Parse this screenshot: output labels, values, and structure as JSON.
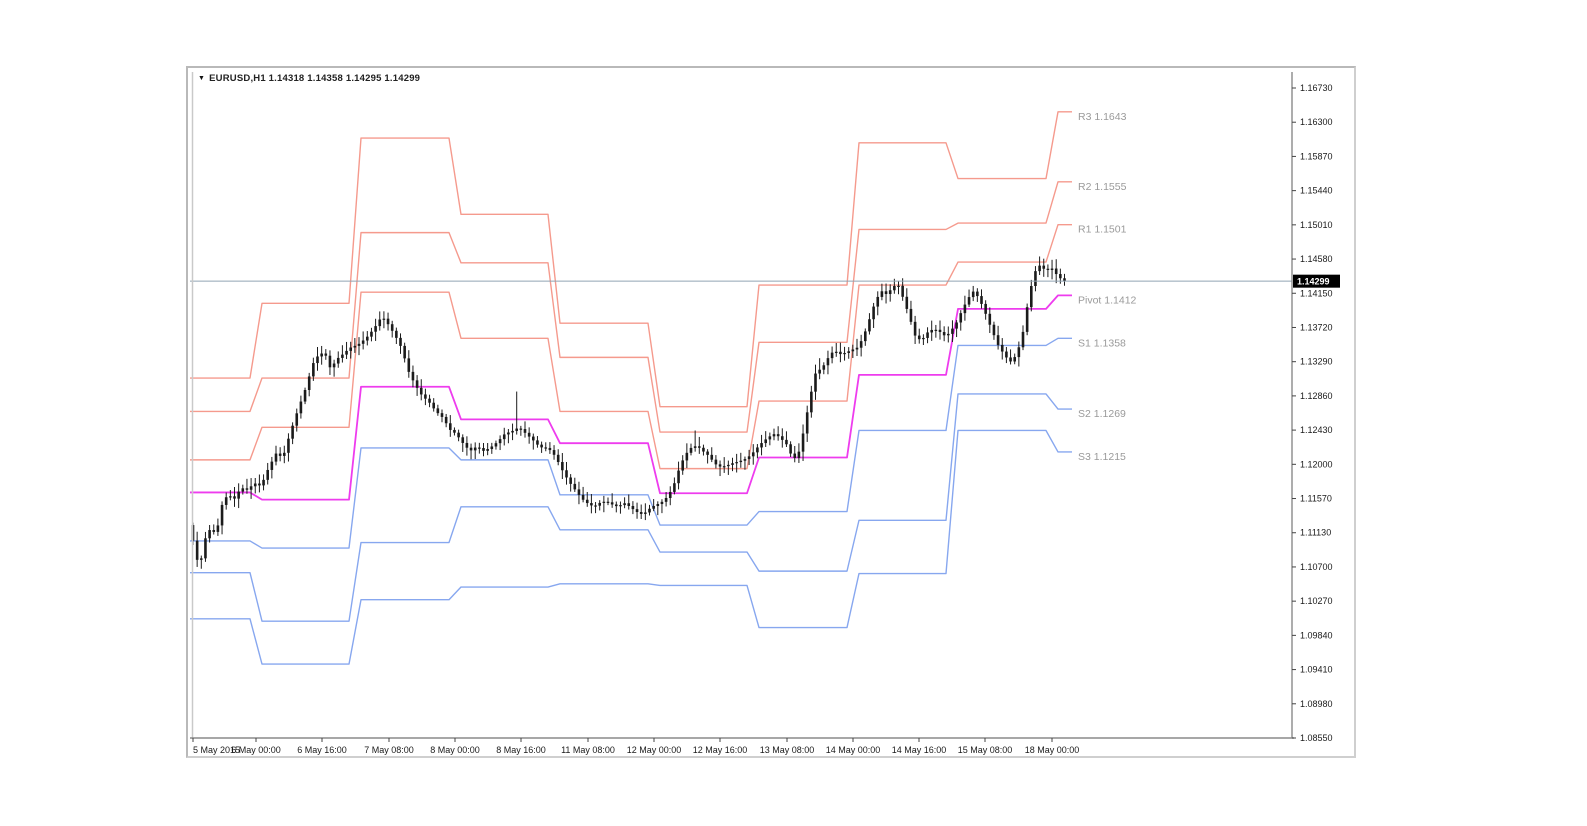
{
  "window": {
    "title": "EURUSD,H1  1.14318 1.14358 1.14295 1.14299",
    "symbol": "EURUSD",
    "timeframe": "H1"
  },
  "colors": {
    "resistance_line": "#f59a8d",
    "pivot_line": "#ee3cee",
    "support_line": "#87a7ef",
    "bid_line": "#90a4b3",
    "candle": "#1b1b1b",
    "axis_text": "#1a1a1a",
    "pivot_label_text": "#9a9a9a",
    "frame": "#8a8a8a",
    "price_box_bg": "#000000",
    "price_box_text": "#ffffff"
  },
  "chart_data": {
    "type": "candlestick-with-step-lines",
    "title": "EURUSD,H1",
    "quote": {
      "open": "1.14318",
      "high": "1.14358",
      "low": "1.14295",
      "close": "1.14299"
    },
    "bid_price": 1.14299,
    "bid_price_label": "1.14299",
    "y_axis": {
      "top_price": 1.1673,
      "bottom_price": 1.0855,
      "labels": [
        "1.16730",
        "1.16300",
        "1.15870",
        "1.15440",
        "1.15010",
        "1.14580",
        "1.14150",
        "1.13720",
        "1.13290",
        "1.12860",
        "1.12430",
        "1.12000",
        "1.11570",
        "1.11130",
        "1.10700",
        "1.10270",
        "1.09840",
        "1.09410",
        "1.08980",
        "1.08550"
      ]
    },
    "x_axis": {
      "labels": [
        "5 May 2015",
        "6 May 00:00",
        "6 May 16:00",
        "7 May 08:00",
        "8 May 00:00",
        "8 May 16:00",
        "11 May 08:00",
        "12 May 00:00",
        "12 May 16:00",
        "13 May 08:00",
        "14 May 00:00",
        "14 May 16:00",
        "15 May 08:00",
        "18 May 00:00"
      ]
    },
    "pivot_labels": [
      {
        "text": "R3 1.1643",
        "price": 1.1643,
        "kind": "resistance"
      },
      {
        "text": "R2 1.1555",
        "price": 1.1555,
        "kind": "resistance"
      },
      {
        "text": "R1 1.1501",
        "price": 1.1501,
        "kind": "resistance"
      },
      {
        "text": "Pivot 1.1412",
        "price": 1.1412,
        "kind": "pivot"
      },
      {
        "text": "S1 1.1358",
        "price": 1.1358,
        "kind": "support"
      },
      {
        "text": "S2 1.1269",
        "price": 1.1269,
        "kind": "support"
      },
      {
        "text": "S3 1.1215",
        "price": 1.1215,
        "kind": "support"
      }
    ],
    "pivot_days": [
      {
        "date": "5 May",
        "r3": 1.1308,
        "r2": 1.1266,
        "r1": 1.1205,
        "p": 1.1164,
        "s1": 1.1103,
        "s2": 1.1063,
        "s3": 1.1005
      },
      {
        "date": "6 May",
        "r3": 1.1402,
        "r2": 1.1308,
        "r1": 1.1246,
        "p": 1.1155,
        "s1": 1.1094,
        "s2": 1.1002,
        "s3": 1.0948
      },
      {
        "date": "7 May",
        "r3": 1.161,
        "r2": 1.1491,
        "r1": 1.1416,
        "p": 1.1297,
        "s1": 1.122,
        "s2": 1.1101,
        "s3": 1.1029
      },
      {
        "date": "8 May",
        "r3": 1.1514,
        "r2": 1.1453,
        "r1": 1.1358,
        "p": 1.1256,
        "s1": 1.1205,
        "s2": 1.1146,
        "s3": 1.1045
      },
      {
        "date": "11 May",
        "r3": 1.1377,
        "r2": 1.1334,
        "r1": 1.1266,
        "p": 1.1226,
        "s1": 1.1161,
        "s2": 1.1117,
        "s3": 1.1049
      },
      {
        "date": "12 May",
        "r3": 1.1272,
        "r2": 1.124,
        "r1": 1.1194,
        "p": 1.1163,
        "s1": 1.1123,
        "s2": 1.1089,
        "s3": 1.1047
      },
      {
        "date": "13 May",
        "r3": 1.1425,
        "r2": 1.1353,
        "r1": 1.1279,
        "p": 1.1208,
        "s1": 1.114,
        "s2": 1.1065,
        "s3": 1.0994
      },
      {
        "date": "14 May",
        "r3": 1.1604,
        "r2": 1.1495,
        "r1": 1.1425,
        "p": 1.1312,
        "s1": 1.1242,
        "s2": 1.1129,
        "s3": 1.1062
      },
      {
        "date": "15 May",
        "r3": 1.1559,
        "r2": 1.1503,
        "r1": 1.1454,
        "p": 1.1395,
        "s1": 1.1349,
        "s2": 1.1288,
        "s3": 1.1242
      },
      {
        "date": "18 May",
        "r3": 1.1643,
        "r2": 1.1555,
        "r1": 1.1501,
        "p": 1.1412,
        "s1": 1.1358,
        "s2": 1.1269,
        "s3": 1.1215
      }
    ],
    "price_path": [
      [
        5,
        1.1123
      ],
      [
        9,
        1.1085
      ],
      [
        14,
        1.1072
      ],
      [
        19,
        1.1105
      ],
      [
        25,
        1.112
      ],
      [
        30,
        1.111
      ],
      [
        36,
        1.1148
      ],
      [
        42,
        1.1162
      ],
      [
        48,
        1.1155
      ],
      [
        55,
        1.117
      ],
      [
        62,
        1.1167
      ],
      [
        68,
        1.1176
      ],
      [
        75,
        1.1172
      ],
      [
        82,
        1.1193
      ],
      [
        90,
        1.1213
      ],
      [
        97,
        1.1208
      ],
      [
        104,
        1.1238
      ],
      [
        112,
        1.1268
      ],
      [
        120,
        1.1296
      ],
      [
        127,
        1.1326
      ],
      [
        134,
        1.134
      ],
      [
        140,
        1.1336
      ],
      [
        145,
        1.1318
      ],
      [
        150,
        1.1331
      ],
      [
        157,
        1.1338
      ],
      [
        164,
        1.1346
      ],
      [
        172,
        1.135
      ],
      [
        180,
        1.1358
      ],
      [
        188,
        1.137
      ],
      [
        196,
        1.1386
      ],
      [
        202,
        1.1376
      ],
      [
        209,
        1.1362
      ],
      [
        216,
        1.1345
      ],
      [
        222,
        1.1318
      ],
      [
        229,
        1.13
      ],
      [
        236,
        1.1286
      ],
      [
        243,
        1.1278
      ],
      [
        250,
        1.1266
      ],
      [
        257,
        1.1258
      ],
      [
        264,
        1.1243
      ],
      [
        270,
        1.1238
      ],
      [
        277,
        1.1226
      ],
      [
        284,
        1.1216
      ],
      [
        291,
        1.1222
      ],
      [
        298,
        1.1216
      ],
      [
        305,
        1.1221
      ],
      [
        312,
        1.1228
      ],
      [
        319,
        1.1238
      ],
      [
        326,
        1.1241
      ],
      [
        333,
        1.1246
      ],
      [
        340,
        1.1238
      ],
      [
        347,
        1.123
      ],
      [
        354,
        1.1221
      ],
      [
        360,
        1.122
      ],
      [
        366,
        1.1216
      ],
      [
        372,
        1.1203
      ],
      [
        378,
        1.1188
      ],
      [
        384,
        1.1176
      ],
      [
        390,
        1.1166
      ],
      [
        396,
        1.1156
      ],
      [
        402,
        1.115
      ],
      [
        408,
        1.1146
      ],
      [
        414,
        1.1151
      ],
      [
        420,
        1.1153
      ],
      [
        426,
        1.1149
      ],
      [
        432,
        1.1146
      ],
      [
        438,
        1.1151
      ],
      [
        444,
        1.1146
      ],
      [
        450,
        1.114
      ],
      [
        457,
        1.1136
      ],
      [
        463,
        1.1143
      ],
      [
        469,
        1.1148
      ],
      [
        475,
        1.1151
      ],
      [
        481,
        1.1158
      ],
      [
        487,
        1.117
      ],
      [
        493,
        1.1193
      ],
      [
        499,
        1.1211
      ],
      [
        505,
        1.122
      ],
      [
        511,
        1.1223
      ],
      [
        517,
        1.1216
      ],
      [
        523,
        1.121
      ],
      [
        529,
        1.12
      ],
      [
        535,
        1.1196
      ],
      [
        541,
        1.1198
      ],
      [
        547,
        1.1201
      ],
      [
        553,
        1.1203
      ],
      [
        559,
        1.1206
      ],
      [
        565,
        1.1211
      ],
      [
        571,
        1.122
      ],
      [
        577,
        1.1228
      ],
      [
        583,
        1.1234
      ],
      [
        589,
        1.1238
      ],
      [
        595,
        1.1232
      ],
      [
        601,
        1.1224
      ],
      [
        607,
        1.1206
      ],
      [
        612,
        1.121
      ],
      [
        618,
        1.1243
      ],
      [
        624,
        1.1283
      ],
      [
        630,
        1.1316
      ],
      [
        636,
        1.132
      ],
      [
        642,
        1.1333
      ],
      [
        648,
        1.1343
      ],
      [
        654,
        1.1338
      ],
      [
        660,
        1.134
      ],
      [
        665,
        1.1343
      ],
      [
        671,
        1.1346
      ],
      [
        677,
        1.1358
      ],
      [
        683,
        1.138
      ],
      [
        689,
        1.1403
      ],
      [
        695,
        1.1418
      ],
      [
        701,
        1.1413
      ],
      [
        707,
        1.1423
      ],
      [
        712,
        1.1426
      ],
      [
        718,
        1.1406
      ],
      [
        724,
        1.1383
      ],
      [
        730,
        1.1358
      ],
      [
        736,
        1.1356
      ],
      [
        742,
        1.1366
      ],
      [
        748,
        1.137
      ],
      [
        754,
        1.1366
      ],
      [
        760,
        1.136
      ],
      [
        764,
        1.1366
      ],
      [
        770,
        1.1376
      ],
      [
        776,
        1.1393
      ],
      [
        782,
        1.1408
      ],
      [
        788,
        1.1418
      ],
      [
        794,
        1.1406
      ],
      [
        800,
        1.1388
      ],
      [
        806,
        1.1368
      ],
      [
        812,
        1.135
      ],
      [
        818,
        1.1338
      ],
      [
        824,
        1.1328
      ],
      [
        830,
        1.1336
      ],
      [
        836,
        1.1358
      ],
      [
        842,
        1.1403
      ],
      [
        848,
        1.144
      ],
      [
        854,
        1.145
      ],
      [
        860,
        1.1443
      ],
      [
        866,
        1.1446
      ],
      [
        872,
        1.1436
      ],
      [
        878,
        1.143
      ]
    ],
    "wick_spikes": [
      [
        9,
        1.1078
      ],
      [
        14,
        1.1068
      ],
      [
        197,
        1.1392
      ],
      [
        330,
        1.1291
      ],
      [
        507,
        1.1242
      ],
      [
        633,
        1.1333
      ],
      [
        712,
        1.143
      ],
      [
        851,
        1.1461
      ]
    ]
  }
}
